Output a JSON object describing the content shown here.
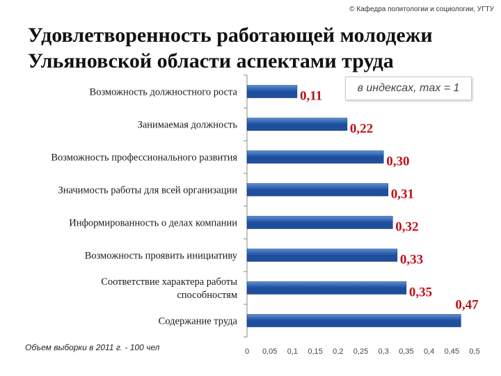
{
  "copyright": "© Кафедра политологии и социологии, УГТУ",
  "title_lines": [
    "Удовлетворенность работающей молодежи",
    "Ульяновской области аспектами труда"
  ],
  "note": "в индексах, max = 1",
  "footnote": "Объем выборки в 2011 г. - 100 чел",
  "chart_data": {
    "type": "bar",
    "orientation": "horizontal",
    "categories": [
      "Возможность должностного роста",
      "Занимаемая должность",
      "Возможность профессионального развития",
      "Значимость работы для всей организации",
      "Информированность о делах компании",
      "Возможность проявить инициативу",
      "Соответствие характера работы способностям",
      "Содержание труда"
    ],
    "category_lines": [
      [
        "Возможность должностного роста"
      ],
      [
        "Занимаемая должность"
      ],
      [
        "Возможность профессионального развития"
      ],
      [
        "Значимость работы для всей организации"
      ],
      [
        "Информированность о делах компании"
      ],
      [
        "Возможность проявить инициативу"
      ],
      [
        "Соответствие характера работы",
        "способностям"
      ],
      [
        "Содержание труда"
      ]
    ],
    "values": [
      0.11,
      0.22,
      0.3,
      0.31,
      0.32,
      0.33,
      0.35,
      0.47
    ],
    "value_labels": [
      "0,11",
      "0,22",
      "0,30",
      "0,31",
      "0,32",
      "0,33",
      "0,35",
      "0,47"
    ],
    "xlim": [
      0,
      0.5
    ],
    "ticks": [
      0,
      0.05,
      0.1,
      0.15,
      0.2,
      0.25,
      0.3,
      0.35,
      0.4,
      0.45,
      0.5
    ],
    "tick_labels": [
      "0",
      "0,05",
      "0,1",
      "0,15",
      "0,2",
      "0,25",
      "0,3",
      "0,35",
      "0,4",
      "0,45",
      "0,5"
    ],
    "grid": false,
    "bar_color": "#1f4e9c",
    "bar_color_light": "#5b8fd6",
    "label_color": "#c0101a"
  }
}
